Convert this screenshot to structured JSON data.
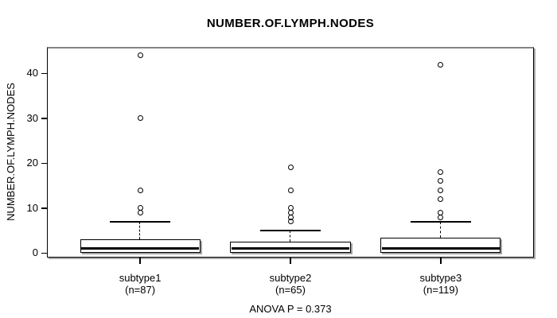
{
  "chart_data": {
    "type": "boxplot",
    "title": "NUMBER.OF.LYMPH.NODES",
    "ylabel": "NUMBER.OF.LYMPH.NODES",
    "xlabel": "",
    "annotation": "ANOVA P = 0.373",
    "categories": [
      "subtype1",
      "subtype2",
      "subtype3"
    ],
    "counts": [
      "(n=87)",
      "(n=65)",
      "(n=119)"
    ],
    "positions": [
      1,
      2,
      3
    ],
    "xlim": [
      0.38,
      3.62
    ],
    "ylim": [
      -1,
      45.9
    ],
    "yticks": [
      0,
      10,
      20,
      30,
      40
    ],
    "ytick_labels": [
      "0",
      "10",
      "20",
      "30",
      "40"
    ],
    "grid": false,
    "legend": null,
    "box_width": 0.8,
    "cap_width": 0.4,
    "series": [
      {
        "name": "subtype1",
        "n": 87,
        "whisker_low": 0,
        "q1": 0,
        "median": 1,
        "q3": 3,
        "whisker_high": 7,
        "outliers": [
          9,
          10,
          14,
          30,
          44
        ]
      },
      {
        "name": "subtype2",
        "n": 65,
        "whisker_low": 0,
        "q1": 0,
        "median": 1,
        "q3": 2.5,
        "whisker_high": 5,
        "outliers": [
          7,
          8,
          9,
          10,
          14,
          19
        ]
      },
      {
        "name": "subtype3",
        "n": 119,
        "whisker_low": 0,
        "q1": 0,
        "median": 1,
        "q3": 3.5,
        "whisker_high": 7,
        "outliers": [
          8,
          9,
          12,
          14,
          16,
          18,
          42
        ]
      }
    ],
    "colors": {
      "background": "#ffffff",
      "line": "#000000",
      "box_fill": "#ffffff",
      "shadow": "#a3a3a3",
      "frame_top": "#848484",
      "text": "#000000"
    }
  }
}
